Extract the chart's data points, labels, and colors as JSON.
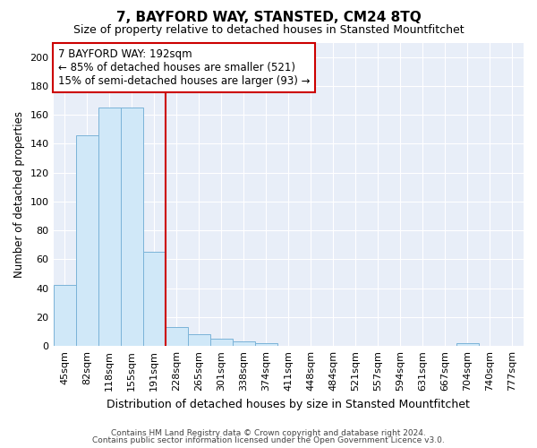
{
  "title": "7, BAYFORD WAY, STANSTED, CM24 8TQ",
  "subtitle": "Size of property relative to detached houses in Stansted Mountfitchet",
  "xlabel": "Distribution of detached houses by size in Stansted Mountfitchet",
  "ylabel": "Number of detached properties",
  "footnote1": "Contains HM Land Registry data © Crown copyright and database right 2024.",
  "footnote2": "Contains public sector information licensed under the Open Government Licence v3.0.",
  "categories": [
    "45sqm",
    "82sqm",
    "118sqm",
    "155sqm",
    "191sqm",
    "228sqm",
    "265sqm",
    "301sqm",
    "338sqm",
    "374sqm",
    "411sqm",
    "448sqm",
    "484sqm",
    "521sqm",
    "557sqm",
    "594sqm",
    "631sqm",
    "667sqm",
    "704sqm",
    "740sqm",
    "777sqm"
  ],
  "values": [
    42,
    146,
    165,
    165,
    65,
    13,
    8,
    5,
    3,
    2,
    0,
    0,
    0,
    0,
    0,
    0,
    0,
    0,
    2,
    0,
    0
  ],
  "bar_color": "#d0e8f8",
  "bar_edge_color": "#7ab3d8",
  "red_line_index": 4,
  "red_line_color": "#cc0000",
  "annotation_box_text": "7 BAYFORD WAY: 192sqm\n← 85% of detached houses are smaller (521)\n15% of semi-detached houses are larger (93) →",
  "annotation_box_edge_color": "#cc0000",
  "ylim": [
    0,
    210
  ],
  "yticks": [
    0,
    20,
    40,
    60,
    80,
    100,
    120,
    140,
    160,
    180,
    200
  ],
  "fig_bg_color": "#ffffff",
  "plot_bg_color": "#e8eef8",
  "title_fontsize": 11,
  "subtitle_fontsize": 9,
  "xlabel_fontsize": 9,
  "ylabel_fontsize": 8.5,
  "tick_fontsize": 8,
  "annot_fontsize": 8.5,
  "footnote_fontsize": 6.5
}
